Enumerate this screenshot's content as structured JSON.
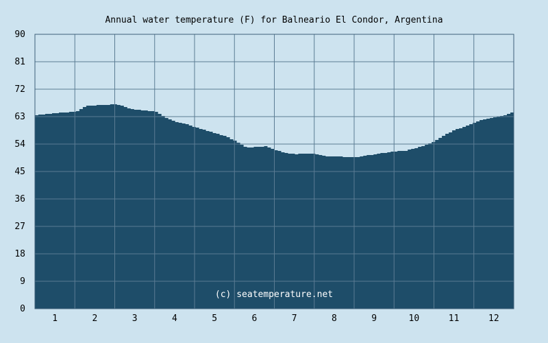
{
  "chart_data": {
    "type": "area",
    "title": "Annual water temperature (F) for Balneario El Condor, Argentina",
    "xlabel": "",
    "ylabel": "",
    "x_ticks": [
      "1",
      "2",
      "3",
      "4",
      "5",
      "6",
      "7",
      "8",
      "9",
      "10",
      "11",
      "12"
    ],
    "y_ticks": [
      "0",
      "9",
      "18",
      "27",
      "36",
      "45",
      "54",
      "63",
      "72",
      "81",
      "90"
    ],
    "ylim": [
      0,
      90
    ],
    "xlim": [
      0.5,
      12.5
    ],
    "grid": true,
    "annotation": "(c) seatemperature.net",
    "series": [
      {
        "x": [
          0.5,
          0.75,
          1.0,
          1.25,
          1.5,
          1.75,
          2.0,
          2.25,
          2.5,
          2.75,
          3.0,
          3.25,
          3.5,
          3.75,
          4.0,
          4.25,
          4.5,
          4.75,
          5.0,
          5.25,
          5.5,
          5.75,
          6.0,
          6.25,
          6.5,
          6.75,
          7.0,
          7.25,
          7.5,
          7.75,
          8.0,
          8.25,
          8.5,
          8.75,
          9.0,
          9.25,
          9.5,
          9.75,
          10.0,
          10.25,
          10.5,
          10.75,
          11.0,
          11.25,
          11.5,
          11.75,
          12.0,
          12.25,
          12.5
        ],
        "values": [
          63.5,
          63.8,
          64.2,
          64.4,
          64.6,
          66.5,
          66.7,
          66.8,
          67.2,
          66.0,
          65.2,
          65.0,
          64.6,
          62.5,
          61.3,
          60.5,
          59.5,
          58.5,
          57.5,
          56.5,
          55.0,
          52.8,
          53.0,
          53.3,
          52.0,
          51.0,
          50.7,
          50.8,
          50.8,
          50.0,
          49.9,
          49.8,
          49.6,
          50.2,
          50.7,
          51.2,
          51.6,
          51.8,
          52.6,
          53.7,
          55.0,
          57.2,
          58.7,
          59.8,
          61.2,
          62.2,
          62.8,
          63.5,
          64.8
        ]
      }
    ],
    "colors": {
      "background": "#cde3ef",
      "area": "#1e4d69",
      "grid": "#5b7c93",
      "axis": "#3d5f78",
      "text": "#000000",
      "credit_text": "#ffffff"
    }
  }
}
